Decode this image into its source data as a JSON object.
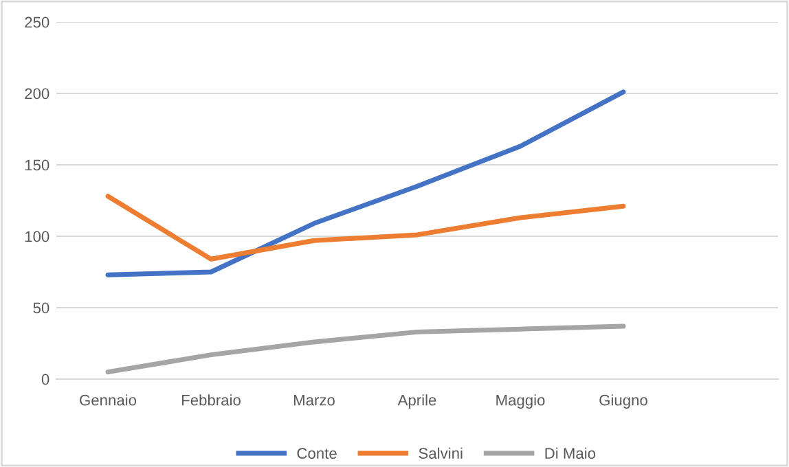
{
  "chart_data": {
    "type": "line",
    "categories": [
      "Gennaio",
      "Febbraio",
      "Marzo",
      "Aprile",
      "Maggio",
      "Giugno",
      null
    ],
    "series": [
      {
        "name": "Conte",
        "color": "#4472c4",
        "values": [
          73,
          75,
          109,
          135,
          163,
          201,
          null
        ]
      },
      {
        "name": "Salvini",
        "color": "#ed7d31",
        "values": [
          128,
          84,
          97,
          101,
          113,
          121,
          null
        ]
      },
      {
        "name": "Di Maio",
        "color": "#a5a5a5",
        "values": [
          5,
          17,
          26,
          33,
          35,
          37,
          null
        ]
      }
    ],
    "ylim": [
      0,
      250
    ],
    "yticks": [
      0,
      50,
      100,
      150,
      200,
      250
    ],
    "grid": "y",
    "legend": "bottom",
    "marker": "none",
    "line_style": "solid"
  }
}
